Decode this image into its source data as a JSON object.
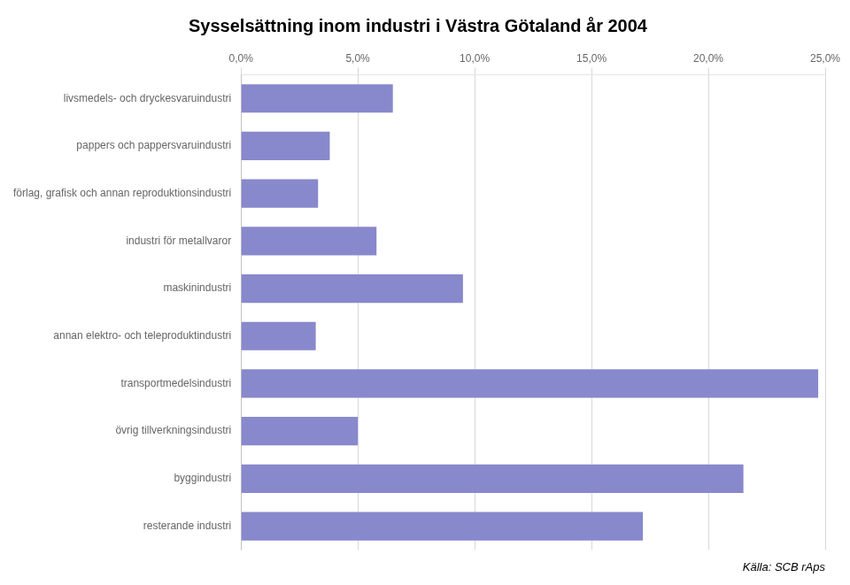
{
  "chart_data": {
    "type": "bar",
    "title": "Sysselsättning inom industri i Västra Götaland år 2004",
    "orientation": "horizontal",
    "categories": [
      "livsmedels- och dryckesvaruindustri",
      "pappers och pappersvaruindustri",
      "förlag, grafisk och annan reproduktionsindustri",
      "industri för metallvaror",
      "maskinindustri",
      "annan elektro- och teleproduktindustri",
      "transportmedelsindustri",
      "övrig tillverkningsindustri",
      "byggindustri",
      "resterande industri"
    ],
    "values": [
      6.5,
      3.8,
      3.3,
      5.8,
      9.5,
      3.2,
      24.7,
      5.0,
      21.5,
      17.2
    ],
    "color": "#8888cc",
    "xlim": [
      0,
      25.0
    ],
    "xticks": [
      {
        "value": 0.0,
        "label": "0,0%"
      },
      {
        "value": 5.0,
        "label": "5,0%"
      },
      {
        "value": 10.0,
        "label": "10,0%"
      },
      {
        "value": 15.0,
        "label": "15,0%"
      },
      {
        "value": 20.0,
        "label": "20,0%"
      },
      {
        "value": 25.0,
        "label": "25,0%"
      }
    ],
    "grid": true,
    "annotations": [
      "Källa: SCB rAps"
    ]
  }
}
